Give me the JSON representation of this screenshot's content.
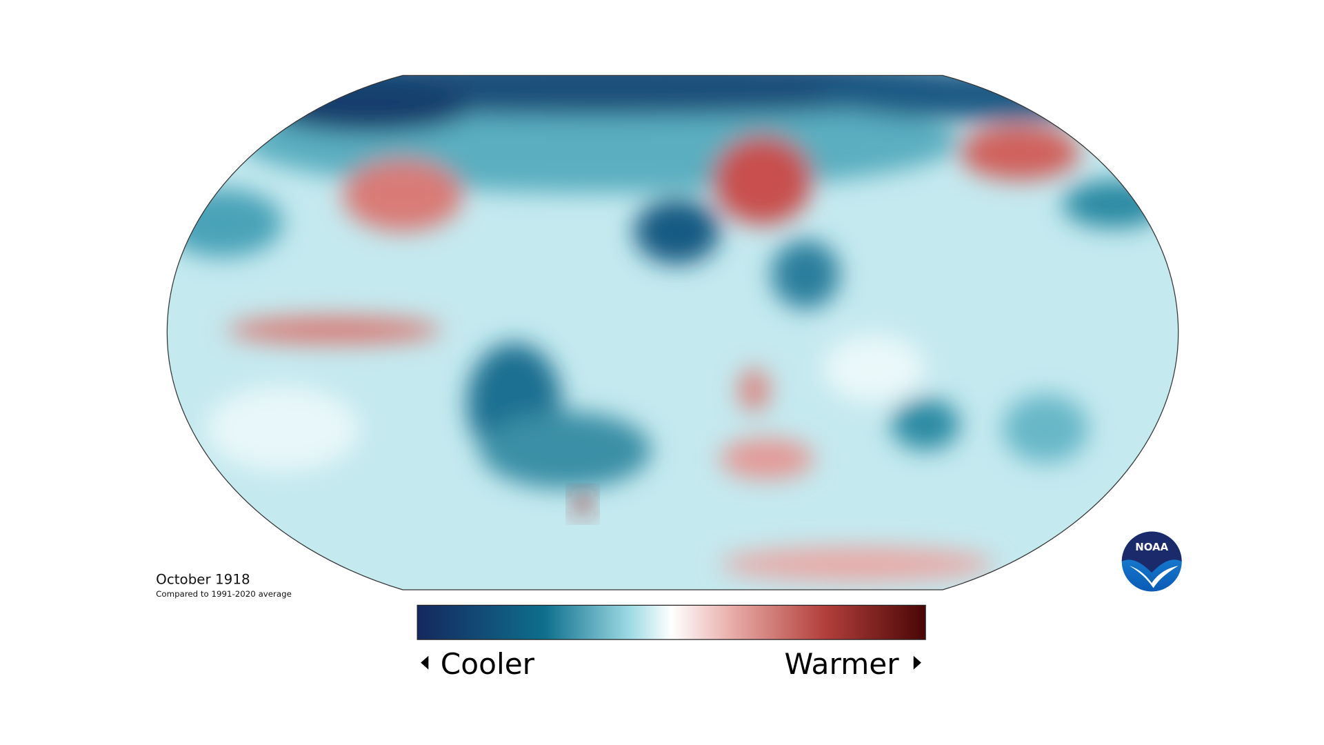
{
  "map": {
    "title": "October 1918",
    "subtitle": "Compared to 1991-2020 average"
  },
  "legend": {
    "low_label": "Cooler",
    "high_label": "Warmer"
  },
  "logo": {
    "text": "NOAA"
  }
}
